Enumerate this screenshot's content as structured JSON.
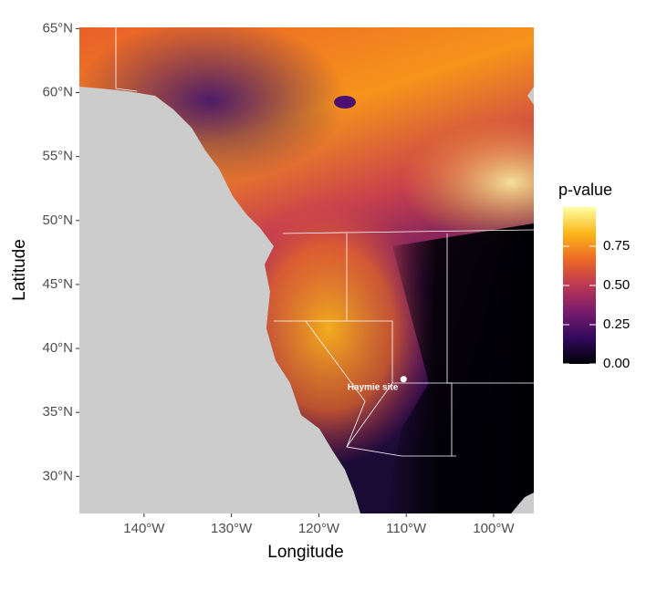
{
  "chart_data": {
    "type": "raster-map",
    "x_label": "Longitude",
    "y_label": "Latitude",
    "xlim": [
      -147.4,
      -95.4
    ],
    "ylim": [
      27.1,
      65.1
    ],
    "xticks": [
      {
        "value": -140,
        "label": "140°W"
      },
      {
        "value": -130,
        "label": "130°W"
      },
      {
        "value": -120,
        "label": "120°W"
      },
      {
        "value": -110,
        "label": "110°W"
      },
      {
        "value": -100,
        "label": "100°W"
      }
    ],
    "yticks": [
      {
        "value": 30,
        "label": "30°N"
      },
      {
        "value": 35,
        "label": "35°N"
      },
      {
        "value": 40,
        "label": "40°N"
      },
      {
        "value": 45,
        "label": "45°N"
      },
      {
        "value": 50,
        "label": "50°N"
      },
      {
        "value": 55,
        "label": "55°N"
      },
      {
        "value": 60,
        "label": "60°N"
      },
      {
        "value": 65,
        "label": "65°N"
      }
    ],
    "points": [
      {
        "label": "Haymie site",
        "lon": -110.3,
        "lat": 37.6,
        "color": "#ffffff"
      }
    ],
    "legend": {
      "title": "p-value",
      "lim": [
        0,
        1
      ],
      "ticks": [
        {
          "value": 0,
          "label": "0.00"
        },
        0.25,
        {
          "value": 0.5,
          "label": "0.50"
        },
        0.75
      ],
      "colors": [
        "#000004",
        "#320a5e",
        "#781c6d",
        "#bc3754",
        "#ed6925",
        "#fbb61a",
        "#fcffa4"
      ]
    }
  }
}
